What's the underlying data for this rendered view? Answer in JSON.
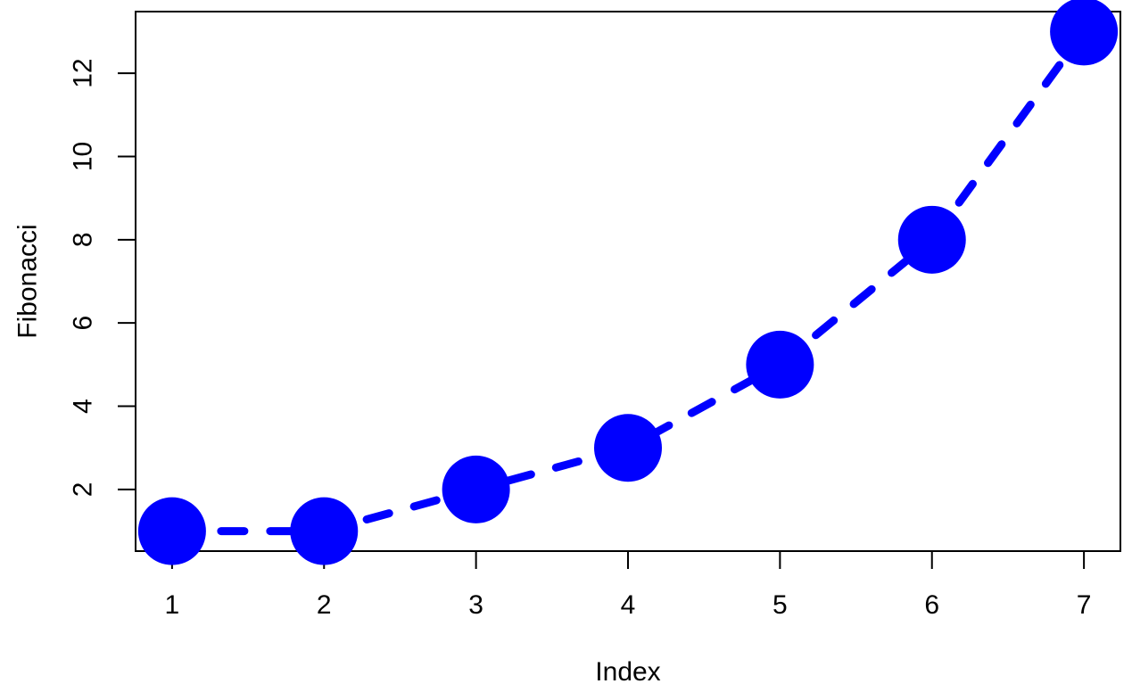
{
  "figure": {
    "background": "#FFFFFF"
  },
  "chart_data": {
    "type": "line",
    "title": "",
    "xlabel": "Index",
    "ylabel": "Fibonacci",
    "x": [
      1,
      2,
      3,
      4,
      5,
      6,
      7
    ],
    "series": [
      {
        "name": "Fibonacci",
        "values": [
          1,
          1,
          2,
          3,
          5,
          8,
          13
        ]
      }
    ],
    "xlim": [
      0.76,
      7.24
    ],
    "ylim": [
      0.52,
      13.48
    ],
    "x_ticks": [
      1,
      2,
      3,
      4,
      5,
      6,
      7
    ],
    "y_ticks": [
      2,
      4,
      6,
      8,
      10,
      12
    ],
    "grid": false,
    "legend_position": "none",
    "line_style": "dashed",
    "marker": "filled-circle",
    "series_color": "#0000FF",
    "axis_color": "#000000",
    "text_color": "#000000"
  }
}
